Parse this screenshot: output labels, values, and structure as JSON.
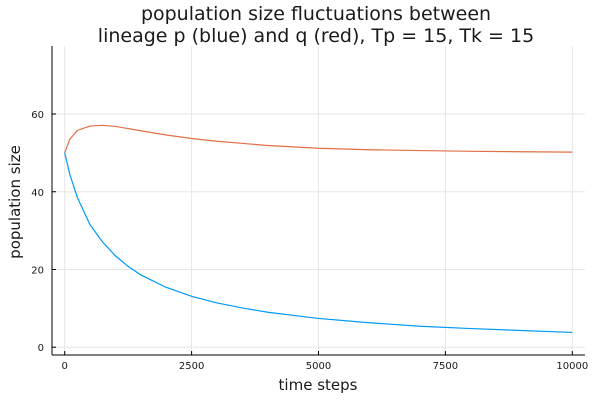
{
  "chart_data": {
    "type": "line",
    "title": "population size fluctuations between\nlineage p (blue) and q (red), Tp = 15, Tk = 15",
    "xlabel": "time steps",
    "ylabel": "population size",
    "xlim": [
      -250,
      10250
    ],
    "ylim": [
      -2,
      77.5
    ],
    "xticks": [
      0,
      2500,
      5000,
      7500,
      10000
    ],
    "xtick_labels": [
      "0",
      "2500",
      "5000",
      "7500",
      "10000"
    ],
    "yticks": [
      0,
      20,
      40,
      60
    ],
    "ytick_labels": [
      "0",
      "20",
      "40",
      "60"
    ],
    "grid": true,
    "legend": "none",
    "series": [
      {
        "color": "#009AFA",
        "x": [
          0,
          100,
          250,
          500,
          750,
          1000,
          1250,
          1500,
          2000,
          2500,
          3000,
          3500,
          4000,
          5000,
          6000,
          7000,
          8000,
          9000,
          10000
        ],
        "y": [
          50,
          44.5,
          38.5,
          31.5,
          27,
          23.5,
          20.8,
          18.6,
          15.4,
          13.1,
          11.4,
          10.1,
          9.0,
          7.4,
          6.3,
          5.4,
          4.8,
          4.3,
          3.8
        ]
      },
      {
        "color": "#E26F46",
        "x": [
          0,
          100,
          250,
          500,
          750,
          1000,
          1500,
          2000,
          2500,
          3000,
          4000,
          5000,
          6000,
          7000,
          8000,
          9000,
          10000
        ],
        "y": [
          50,
          53.5,
          55.8,
          56.9,
          57.1,
          56.8,
          55.7,
          54.6,
          53.7,
          53.0,
          51.9,
          51.2,
          50.8,
          50.6,
          50.4,
          50.3,
          50.2
        ]
      }
    ]
  }
}
